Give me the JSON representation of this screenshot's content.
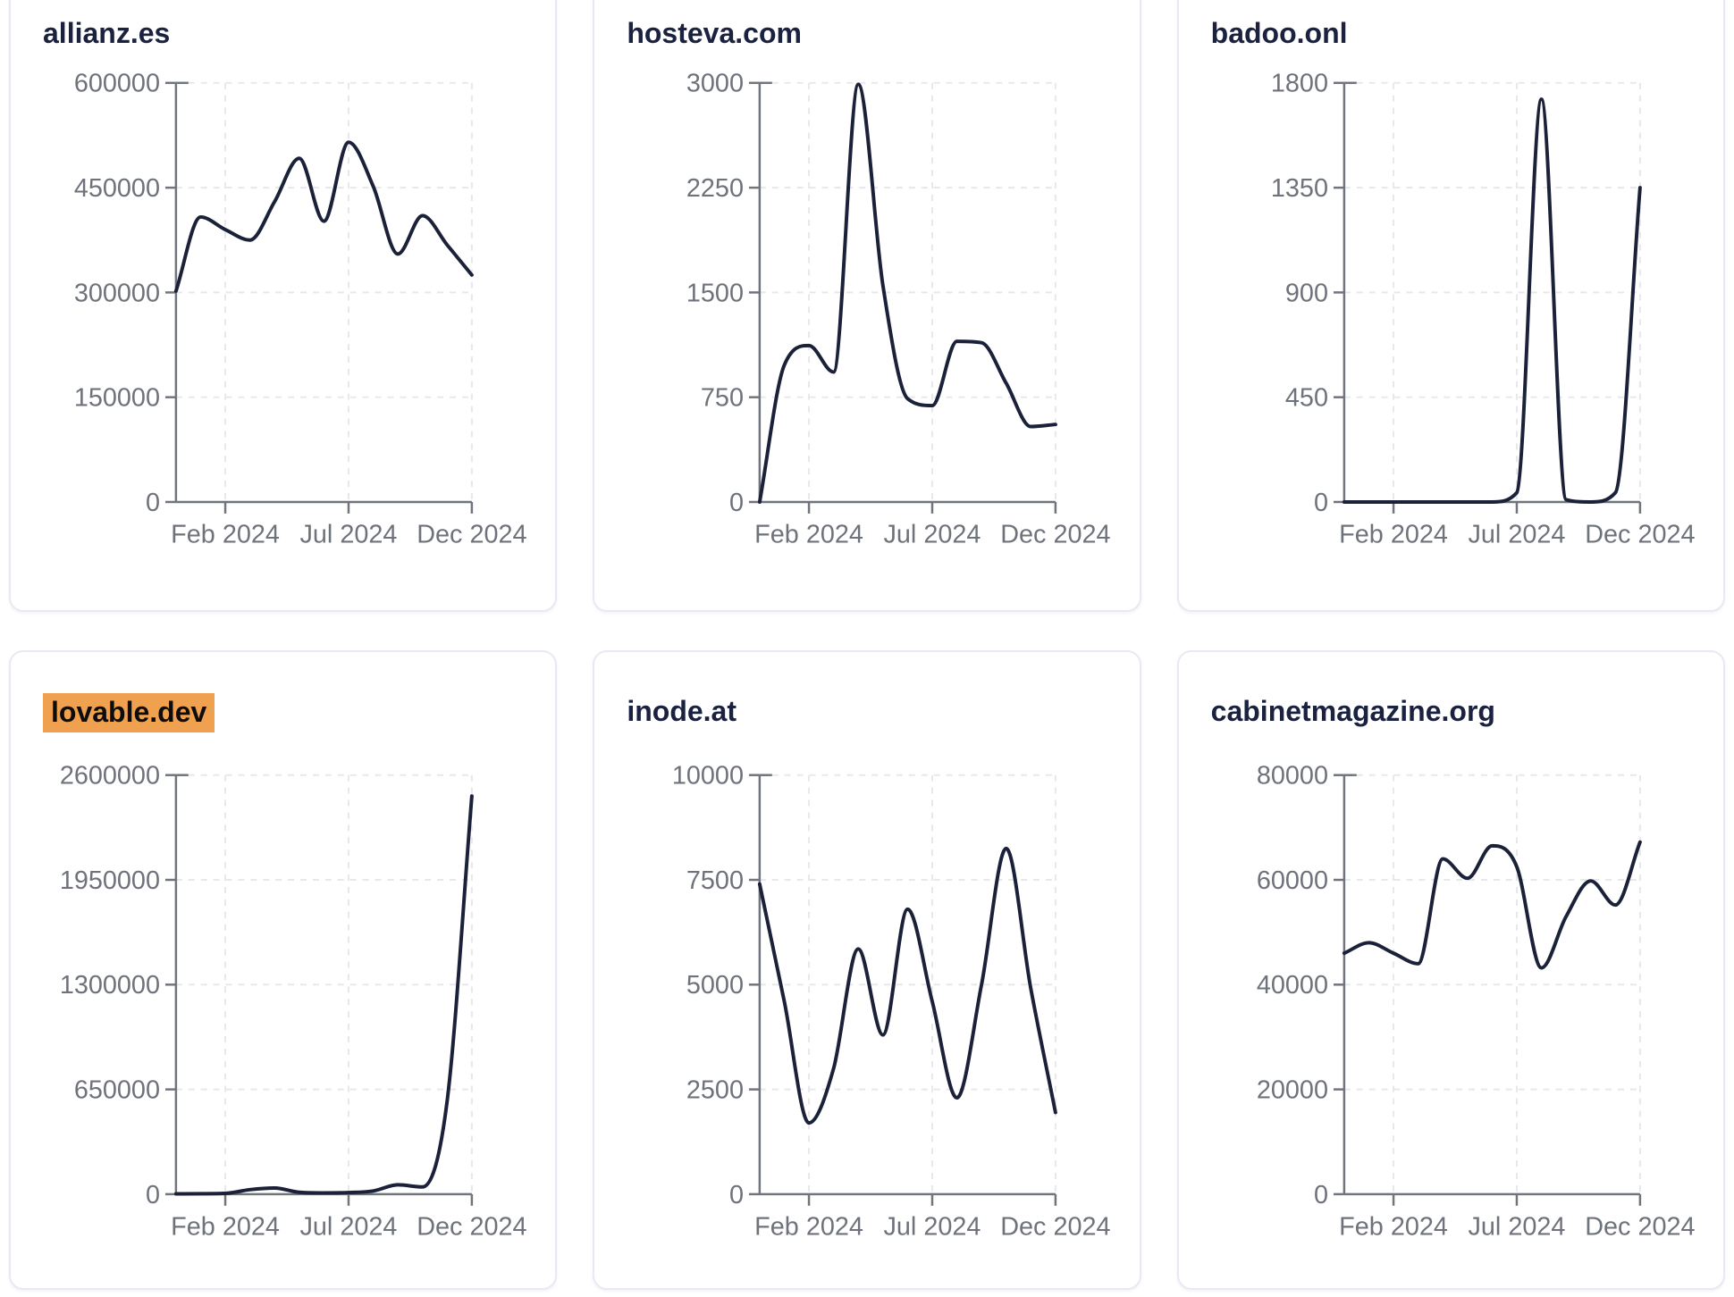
{
  "page": {
    "background": "#ffffff"
  },
  "theme": {
    "line_color": "#1b2138",
    "axis_color": "#70747c",
    "tick_label_color": "#6e727a",
    "grid_color": "#e7e8ec",
    "title_color": "#1a2240",
    "card_border": "#e7eaf3",
    "card_background": "#ffffff",
    "highlight_color": "#f0a150"
  },
  "x_axis": {
    "tick_labels": [
      "Feb 2024",
      "Jul 2024",
      "Dec 2024"
    ],
    "tick_indices": [
      2,
      7,
      12
    ]
  },
  "chart_data": [
    {
      "type": "line",
      "title": "allianz.es",
      "highlighted": false,
      "x": [
        "Dec 2023",
        "Jan 2024",
        "Feb 2024",
        "Mar 2024",
        "Apr 2024",
        "May 2024",
        "Jun 2024",
        "Jul 2024",
        "Aug 2024",
        "Sep 2024",
        "Oct 2024",
        "Nov 2024",
        "Dec 2024"
      ],
      "values": [
        302000,
        408000,
        390000,
        375000,
        430000,
        492000,
        402000,
        515000,
        452000,
        355000,
        410000,
        368000,
        325000
      ],
      "ylim": [
        0,
        600000
      ],
      "yticks": [
        0,
        150000,
        300000,
        450000,
        600000
      ],
      "xticks": [
        "Feb 2024",
        "Jul 2024",
        "Dec 2024"
      ],
      "grid": true,
      "legend": "none"
    },
    {
      "type": "line",
      "title": "hosteva.com",
      "highlighted": false,
      "x": [
        "Dec 2023",
        "Jan 2024",
        "Feb 2024",
        "Mar 2024",
        "Apr 2024",
        "May 2024",
        "Jun 2024",
        "Jul 2024",
        "Aug 2024",
        "Sep 2024",
        "Oct 2024",
        "Nov 2024",
        "Dec 2024"
      ],
      "values": [
        0,
        980,
        1120,
        930,
        2990,
        1550,
        740,
        690,
        1150,
        1140,
        850,
        540,
        555
      ],
      "ylim": [
        0,
        3000
      ],
      "yticks": [
        0,
        750,
        1500,
        2250,
        3000
      ],
      "xticks": [
        "Feb 2024",
        "Jul 2024",
        "Dec 2024"
      ],
      "grid": true,
      "legend": "none"
    },
    {
      "type": "line",
      "title": "badoo.onl",
      "highlighted": false,
      "x": [
        "Dec 2023",
        "Jan 2024",
        "Feb 2024",
        "Mar 2024",
        "Apr 2024",
        "May 2024",
        "Jun 2024",
        "Jul 2024",
        "Aug 2024",
        "Sep 2024",
        "Oct 2024",
        "Nov 2024",
        "Dec 2024"
      ],
      "values": [
        0,
        0,
        0,
        0,
        0,
        0,
        0,
        40,
        1730,
        10,
        0,
        40,
        1350
      ],
      "ylim": [
        0,
        1800
      ],
      "yticks": [
        0,
        450,
        900,
        1350,
        1800
      ],
      "xticks": [
        "Feb 2024",
        "Jul 2024",
        "Dec 2024"
      ],
      "grid": true,
      "legend": "none"
    },
    {
      "type": "line",
      "title": "lovable.dev",
      "highlighted": true,
      "x": [
        "Dec 2023",
        "Jan 2024",
        "Feb 2024",
        "Mar 2024",
        "Apr 2024",
        "May 2024",
        "Jun 2024",
        "Jul 2024",
        "Aug 2024",
        "Sep 2024",
        "Oct 2024",
        "Nov 2024",
        "Dec 2024"
      ],
      "values": [
        2000,
        3000,
        5000,
        28000,
        38000,
        12000,
        8000,
        10000,
        20000,
        58000,
        45000,
        580000,
        2470000
      ],
      "ylim": [
        0,
        2600000
      ],
      "yticks": [
        0,
        650000,
        1300000,
        1950000,
        2600000
      ],
      "xticks": [
        "Feb 2024",
        "Jul 2024",
        "Dec 2024"
      ],
      "grid": true,
      "legend": "none"
    },
    {
      "type": "line",
      "title": "inode.at",
      "highlighted": false,
      "x": [
        "Dec 2023",
        "Jan 2024",
        "Feb 2024",
        "Mar 2024",
        "Apr 2024",
        "May 2024",
        "Jun 2024",
        "Jul 2024",
        "Aug 2024",
        "Sep 2024",
        "Oct 2024",
        "Nov 2024",
        "Dec 2024"
      ],
      "values": [
        7400,
        4600,
        1700,
        3000,
        5850,
        3800,
        6800,
        4600,
        2300,
        5000,
        8250,
        4900,
        1950
      ],
      "ylim": [
        0,
        10000
      ],
      "yticks": [
        0,
        2500,
        5000,
        7500,
        10000
      ],
      "xticks": [
        "Feb 2024",
        "Jul 2024",
        "Dec 2024"
      ],
      "grid": true,
      "legend": "none"
    },
    {
      "type": "line",
      "title": "cabinetmagazine.org",
      "highlighted": false,
      "x": [
        "Dec 2023",
        "Jan 2024",
        "Feb 2024",
        "Mar 2024",
        "Apr 2024",
        "May 2024",
        "Jun 2024",
        "Jul 2024",
        "Aug 2024",
        "Sep 2024",
        "Oct 2024",
        "Nov 2024",
        "Dec 2024"
      ],
      "values": [
        46000,
        48000,
        46000,
        44000,
        64000,
        60300,
        66500,
        62500,
        43200,
        53000,
        59800,
        55200,
        67200
      ],
      "ylim": [
        0,
        80000
      ],
      "yticks": [
        0,
        20000,
        40000,
        60000,
        80000
      ],
      "xticks": [
        "Feb 2024",
        "Jul 2024",
        "Dec 2024"
      ],
      "grid": true,
      "legend": "none"
    }
  ]
}
